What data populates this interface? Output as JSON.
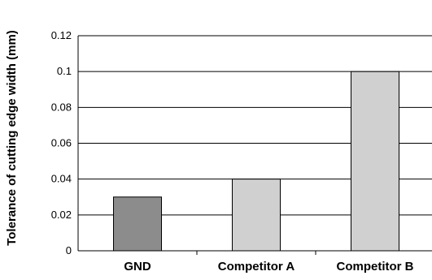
{
  "chart_data": {
    "type": "bar",
    "title": "",
    "xlabel": "",
    "ylabel": "Tolerance of cutting edge width (mm)",
    "categories": [
      "GND",
      "Competitor A",
      "Competitor B"
    ],
    "values": [
      0.03,
      0.04,
      0.1
    ],
    "ylim": [
      0,
      0.12
    ],
    "yticks": [
      "0",
      "0.02",
      "0.04",
      "0.06",
      "0.08",
      "0.1",
      "0.12"
    ],
    "grid": true,
    "legend": "none",
    "bar_colors": [
      "#8c8c8c",
      "#d0d0d0",
      "#d0d0d0"
    ]
  }
}
